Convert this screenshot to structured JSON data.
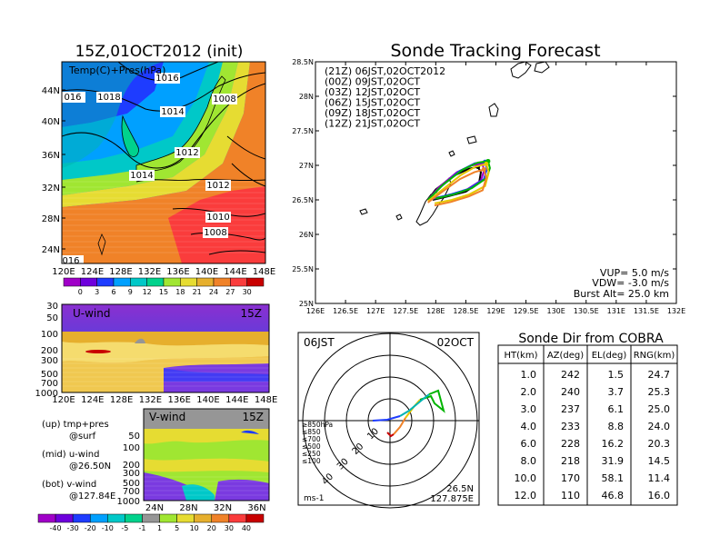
{
  "left": {
    "title": "15Z,01OCT2012 (init)",
    "map": {
      "label": "Temp(C)+Pres(hPa)",
      "lat_ticks": [
        "44N",
        "40N",
        "36N",
        "32N",
        "28N",
        "24N"
      ],
      "lon_ticks": [
        "120E",
        "124E",
        "128E",
        "132E",
        "136E",
        "140E",
        "144E",
        "148E"
      ],
      "isobars": [
        {
          "label": "1016"
        },
        {
          "label": "016"
        },
        {
          "label": "1018"
        },
        {
          "label": "1014"
        },
        {
          "label": "1008"
        },
        {
          "label": "1012"
        },
        {
          "label": "1014"
        },
        {
          "label": "1012"
        },
        {
          "label": "1010"
        },
        {
          "label": "1008"
        },
        {
          "label": "016"
        }
      ],
      "colorbar": {
        "ticks": [
          "0",
          "3",
          "6",
          "9",
          "12",
          "15",
          "18",
          "21",
          "24",
          "27",
          "30"
        ],
        "colors": [
          "#a000c8",
          "#6e00dc",
          "#1e3cff",
          "#00a0ff",
          "#00c8c8",
          "#00d28c",
          "#a0e632",
          "#e6dc32",
          "#e6af2d",
          "#f08228",
          "#fa3c3c",
          "#c80000"
        ]
      }
    },
    "uwind": {
      "label": "U-wind",
      "time": "15Z",
      "y_ticks": [
        "30",
        "50",
        "100",
        "200",
        "300",
        "500",
        "700",
        "1000"
      ],
      "x_ticks": [
        "120E",
        "124E",
        "128E",
        "132E",
        "136E",
        "140E",
        "144E",
        "148E"
      ]
    },
    "vwind": {
      "label": "V-wind",
      "time": "15Z",
      "y_ticks": [
        "50",
        "100",
        "200",
        "300",
        "500",
        "700",
        "1000"
      ],
      "x_ticks": [
        "24N",
        "28N",
        "32N",
        "36N"
      ]
    },
    "notes": {
      "up_1": "(up) tmp+pres",
      "up_2": "@surf",
      "mid_1": "(mid) u-wind",
      "mid_2": "@26.50N",
      "bot_1": "(bot) v-wind",
      "bot_2": "@127.84E"
    },
    "wind_colorbar": {
      "ticks": [
        "-40",
        "-30",
        "-20",
        "-10",
        "-5",
        "-1",
        "1",
        "5",
        "10",
        "20",
        "30",
        "40"
      ],
      "colors": [
        "#a000c8",
        "#6e00dc",
        "#1e3cff",
        "#00a0ff",
        "#00c8c8",
        "#00d28c",
        "#969696",
        "#a0e632",
        "#e6dc32",
        "#e6af2d",
        "#f08228",
        "#fa3c3c",
        "#c80000"
      ]
    }
  },
  "forecast": {
    "title": "Sonde Tracking Forecast",
    "legend": [
      {
        "text": "(21Z)  06JST,02OCT2012",
        "color": "#000000"
      },
      {
        "text": "(00Z)  09JST,02OCT",
        "color": "#a000c8"
      },
      {
        "text": "(03Z)  12JST,02OCT",
        "color": "#1e3cff"
      },
      {
        "text": "(06Z)  15JST,02OCT",
        "color": "#00b400"
      },
      {
        "text": "(09Z)  18JST,02OCT",
        "color": "#e6c800"
      },
      {
        "text": "(12Z)  21JST,02OCT",
        "color": "#f08228"
      }
    ],
    "lat_ticks": [
      "28.5N",
      "28N",
      "27.5N",
      "27N",
      "26.5N",
      "26N",
      "25.5N",
      "25N"
    ],
    "lon_ticks": [
      "126E",
      "126.5E",
      "127E",
      "127.5E",
      "128E",
      "128.5E",
      "129E",
      "129.5E",
      "130E",
      "130.5E",
      "131E",
      "131.5E",
      "132E"
    ],
    "params": {
      "vup": "VUP= 5.0 m/s",
      "vdw": "VDW= -3.0 m/s",
      "burst": "Burst Alt= 25.0 km"
    }
  },
  "polar": {
    "top_left": "06JST",
    "top_right": "02OCT",
    "range_labels": [
      "10",
      "20",
      "30",
      "40"
    ],
    "bottom_left": "ms-1",
    "bottom_right_1": "26.5N",
    "bottom_right_2": "127.875E",
    "levels": [
      {
        "text": "≥850hPa",
        "color": "#c80000"
      },
      {
        "text": "≤850",
        "color": "#f08228"
      },
      {
        "text": "≤700",
        "color": "#e6c800"
      },
      {
        "text": "≤500",
        "color": "#00b400"
      },
      {
        "text": "≤250",
        "color": "#00b4b4"
      },
      {
        "text": "≤100",
        "color": "#1e3cff"
      }
    ]
  },
  "sonde_table": {
    "title": "Sonde Dir from COBRA",
    "headers": [
      "HT(km)",
      "AZ(deg)",
      "EL(deg)",
      "RNG(km)"
    ],
    "rows": [
      [
        "1.0",
        "242",
        "1.5",
        "24.7"
      ],
      [
        "2.0",
        "240",
        "3.7",
        "25.3"
      ],
      [
        "3.0",
        "237",
        "6.1",
        "25.0"
      ],
      [
        "4.0",
        "233",
        "8.8",
        "24.0"
      ],
      [
        "6.0",
        "228",
        "16.2",
        "20.3"
      ],
      [
        "8.0",
        "218",
        "31.9",
        "14.5"
      ],
      [
        "10.0",
        "170",
        "58.1",
        "11.4"
      ],
      [
        "12.0",
        "110",
        "46.8",
        "16.0"
      ]
    ]
  },
  "chart_data": [
    {
      "type": "heatmap",
      "title": "15Z,01OCT2012 (init)",
      "subtitle": "Temp(C)+Pres(hPa)",
      "x_ticks": [
        "120E",
        "124E",
        "128E",
        "132E",
        "136E",
        "140E",
        "144E",
        "148E"
      ],
      "y_ticks": [
        "24N",
        "28N",
        "32N",
        "36N",
        "40N",
        "44N"
      ],
      "colorbar_ticks": [
        0,
        3,
        6,
        9,
        12,
        15,
        18,
        21,
        24,
        27,
        30
      ],
      "contour_labels": [
        "1016",
        "016",
        "1018",
        "1014",
        "1008",
        "1012",
        "1014",
        "1012",
        "1010",
        "1008",
        "016"
      ]
    },
    {
      "type": "heatmap",
      "title": "U-wind",
      "subtitle": "15Z",
      "x_ticks": [
        "120E",
        "124E",
        "128E",
        "132E",
        "136E",
        "140E",
        "144E",
        "148E"
      ],
      "y_ticks": [
        "30",
        "50",
        "100",
        "200",
        "300",
        "500",
        "700",
        "1000"
      ]
    },
    {
      "type": "heatmap",
      "title": "V-wind",
      "subtitle": "15Z",
      "x_ticks": [
        "24N",
        "28N",
        "32N",
        "36N"
      ],
      "y_ticks": [
        "50",
        "100",
        "200",
        "300",
        "500",
        "700",
        "1000"
      ],
      "colorbar_ticks": [
        -40,
        -30,
        -20,
        -10,
        -5,
        -1,
        1,
        5,
        10,
        20,
        30,
        40
      ]
    },
    {
      "type": "line",
      "title": "Sonde Tracking Forecast",
      "xlim": [
        126,
        132
      ],
      "ylim": [
        25,
        28.5
      ],
      "series": [
        {
          "name": "(21Z)  06JST,02OCT2012",
          "x": [
            127.87,
            128.0,
            128.3,
            128.55,
            128.7,
            128.75,
            128.72,
            128.5,
            128.2,
            127.95
          ],
          "y": [
            26.5,
            26.65,
            26.85,
            26.95,
            26.98,
            26.9,
            26.75,
            26.62,
            26.55,
            26.5
          ]
        },
        {
          "name": "(00Z)  09JST,02OCT",
          "x": [
            127.87,
            128.05,
            128.35,
            128.6,
            128.78,
            128.8,
            128.75,
            128.5,
            128.2,
            127.95
          ],
          "y": [
            26.5,
            26.68,
            26.9,
            27.0,
            27.02,
            26.92,
            26.78,
            26.64,
            26.56,
            26.52
          ]
        },
        {
          "name": "(03Z)  12JST,02OCT",
          "x": [
            127.87,
            128.1,
            128.4,
            128.65,
            128.82,
            128.85,
            128.8,
            128.55,
            128.25,
            127.97
          ],
          "y": [
            26.5,
            26.7,
            26.92,
            27.03,
            27.05,
            26.95,
            26.8,
            26.66,
            26.58,
            26.52
          ]
        },
        {
          "name": "(06Z)  15JST,02OCT",
          "x": [
            127.87,
            128.12,
            128.45,
            128.7,
            128.87,
            128.9,
            128.85,
            128.6,
            128.3,
            128.0
          ],
          "y": [
            26.5,
            26.72,
            26.94,
            27.04,
            27.06,
            26.96,
            26.82,
            26.67,
            26.58,
            26.52
          ]
        },
        {
          "name": "(09Z)  18JST,02OCT",
          "x": [
            127.87,
            128.1,
            128.42,
            128.66,
            128.84,
            128.88,
            128.82,
            128.56,
            128.27,
            127.98
          ],
          "y": [
            26.48,
            26.64,
            26.86,
            26.98,
            27.02,
            26.9,
            26.7,
            26.58,
            26.5,
            26.45
          ]
        },
        {
          "name": "(12Z)  21JST,02OCT",
          "x": [
            127.87,
            128.08,
            128.4,
            128.64,
            128.8,
            128.84,
            128.78,
            128.55,
            128.25,
            127.98
          ],
          "y": [
            26.46,
            26.6,
            26.8,
            26.9,
            26.94,
            26.82,
            26.64,
            26.55,
            26.47,
            26.42
          ]
        }
      ]
    },
    {
      "type": "table",
      "title": "Sonde Dir from COBRA",
      "headers": [
        "HT(km)",
        "AZ(deg)",
        "EL(deg)",
        "RNG(km)"
      ],
      "rows": [
        [
          "1.0",
          "242",
          "1.5",
          "24.7"
        ],
        [
          "2.0",
          "240",
          "3.7",
          "25.3"
        ],
        [
          "3.0",
          "237",
          "6.1",
          "25.0"
        ],
        [
          "4.0",
          "233",
          "8.8",
          "24.0"
        ],
        [
          "6.0",
          "228",
          "16.2",
          "20.3"
        ],
        [
          "8.0",
          "218",
          "31.9",
          "14.5"
        ],
        [
          "10.0",
          "170",
          "58.1",
          "11.4"
        ],
        [
          "12.0",
          "110",
          "46.8",
          "16.0"
        ]
      ]
    }
  ]
}
